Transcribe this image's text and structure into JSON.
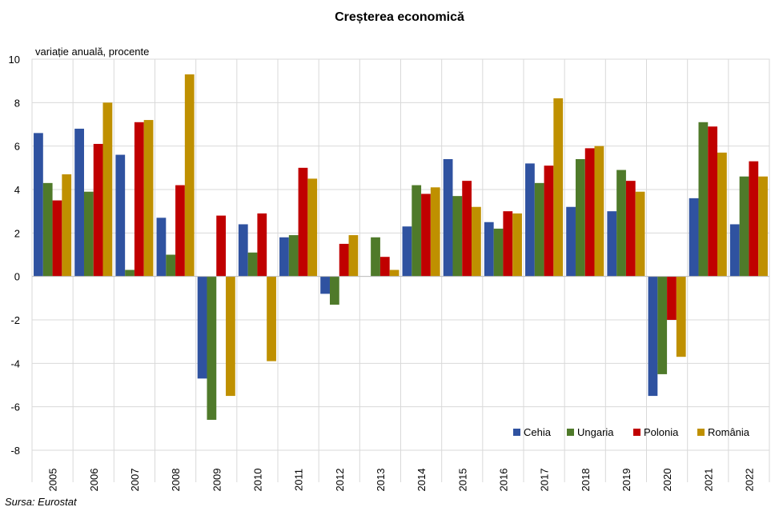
{
  "chart_data": {
    "type": "bar",
    "title": "Creșterea economică",
    "ylabel": "variație anuală, procente",
    "xlabel": "",
    "source": "Sursa: Eurostat",
    "ylim": [
      -8,
      10
    ],
    "yticks": [
      -8,
      -6,
      -4,
      -2,
      0,
      2,
      4,
      6,
      8,
      10
    ],
    "grid": true,
    "legend_position": "bottom-right",
    "categories": [
      "2005",
      "2006",
      "2007",
      "2008",
      "2009",
      "2010",
      "2011",
      "2012",
      "2013",
      "2014",
      "2015",
      "2016",
      "2017",
      "2018",
      "2019",
      "2020",
      "2021",
      "2022"
    ],
    "series": [
      {
        "name": "Cehia",
        "color": "#2F52A0",
        "values": [
          6.6,
          6.8,
          5.6,
          2.7,
          -4.7,
          2.4,
          1.8,
          -0.8,
          0.0,
          2.3,
          5.4,
          2.5,
          5.2,
          3.2,
          3.0,
          -5.5,
          3.6,
          2.4
        ]
      },
      {
        "name": "Ungaria",
        "color": "#4F7A2A",
        "values": [
          4.3,
          3.9,
          0.3,
          1.0,
          -6.6,
          1.1,
          1.9,
          -1.3,
          1.8,
          4.2,
          3.7,
          2.2,
          4.3,
          5.4,
          4.9,
          -4.5,
          7.1,
          4.6
        ]
      },
      {
        "name": "Polonia",
        "color": "#C00000",
        "values": [
          3.5,
          6.1,
          7.1,
          4.2,
          2.8,
          2.9,
          5.0,
          1.5,
          0.9,
          3.8,
          4.4,
          3.0,
          5.1,
          5.9,
          4.4,
          -2.0,
          6.9,
          5.3
        ]
      },
      {
        "name": "România",
        "color": "#BF9000",
        "values": [
          4.7,
          8.0,
          7.2,
          9.3,
          -5.5,
          -3.9,
          4.5,
          1.9,
          0.3,
          4.1,
          3.2,
          2.9,
          8.2,
          6.0,
          3.9,
          -3.7,
          5.7,
          4.6
        ]
      }
    ]
  }
}
